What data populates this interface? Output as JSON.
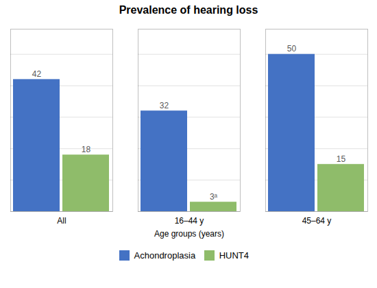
{
  "chart_data": {
    "type": "bar",
    "title": "Prevalence of hearing loss",
    "xlabel": "Age groups (years)",
    "categories": [
      "All",
      "16–44 y",
      "45–64 y"
    ],
    "series": [
      {
        "name": "Achondroplasia",
        "color": "#4472C4",
        "values": [
          42,
          32,
          50
        ]
      },
      {
        "name": "HUNT4",
        "color": "#8FBC6A",
        "values": [
          18,
          3,
          15
        ],
        "value_labels": [
          "18",
          "3ᵃ",
          "15"
        ]
      }
    ],
    "ylim": [
      0,
      58
    ],
    "yticks": [
      0,
      10,
      20,
      30,
      40,
      50
    ],
    "grid": true,
    "legend": "bottom",
    "data_labels": true,
    "tick_labels": "x"
  }
}
